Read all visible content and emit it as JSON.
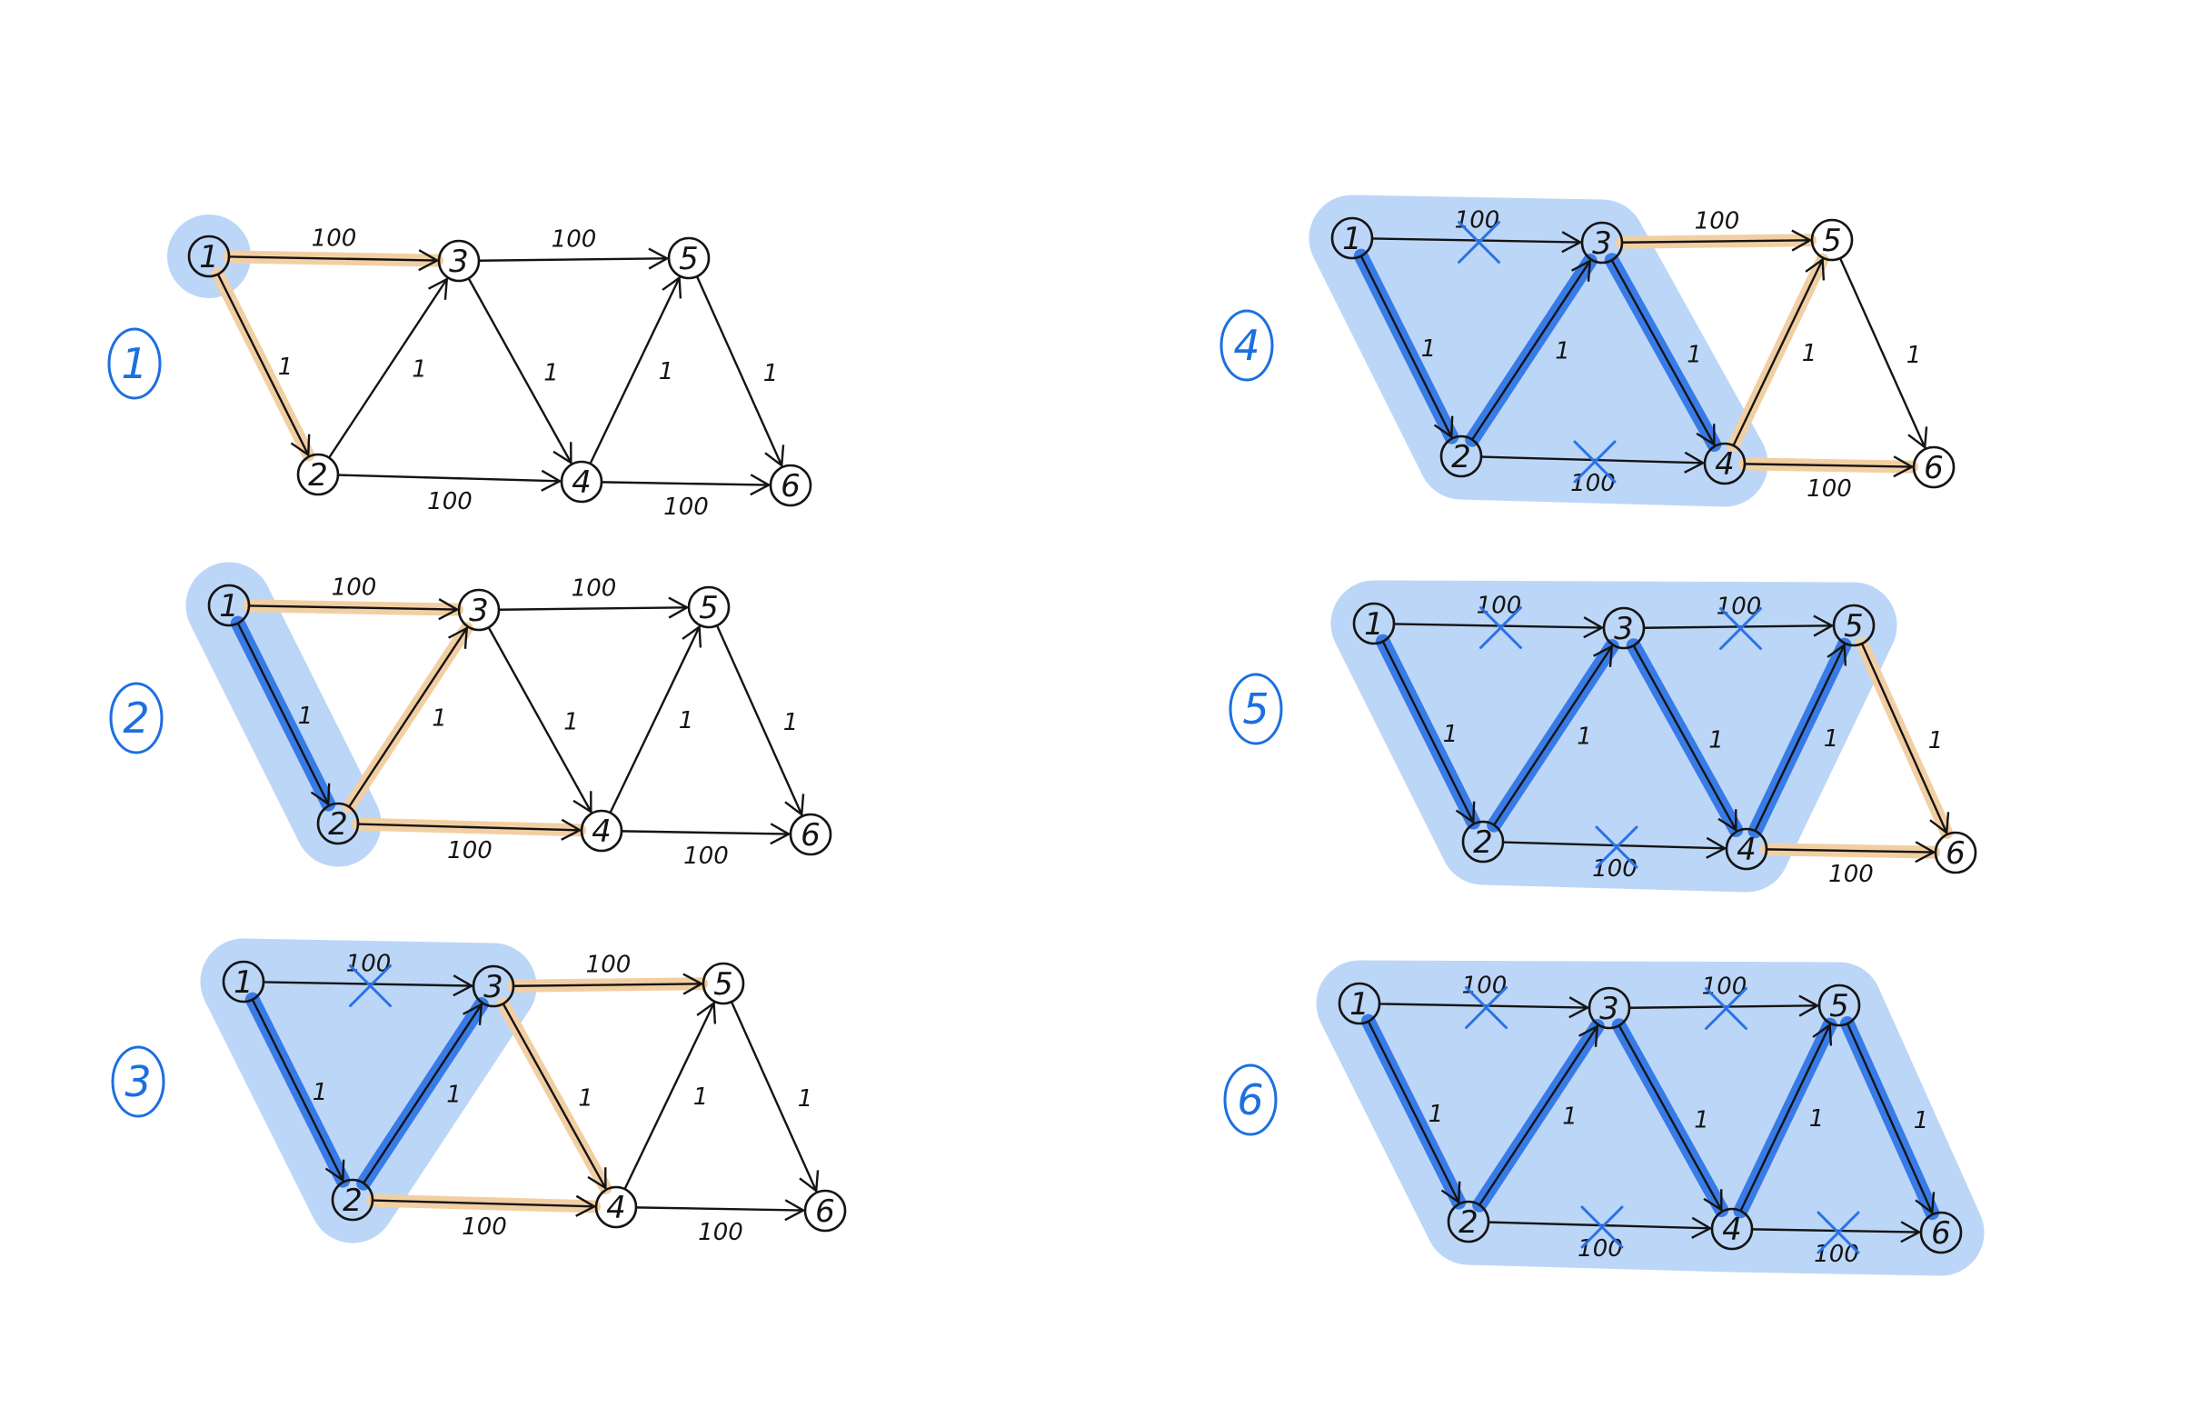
{
  "colors": {
    "region": "#bcd6f7",
    "tree_edge": "#2a72e6",
    "frontier": "#f2cfa3",
    "edge": "#141414",
    "cross": "#2a72e6",
    "step": "#1c6fe0"
  },
  "nodes": [
    {
      "id": "1",
      "label": "1"
    },
    {
      "id": "2",
      "label": "2"
    },
    {
      "id": "3",
      "label": "3"
    },
    {
      "id": "4",
      "label": "4"
    },
    {
      "id": "5",
      "label": "5"
    },
    {
      "id": "6",
      "label": "6"
    }
  ],
  "edges": [
    {
      "id": "e13",
      "from": "1",
      "to": "3",
      "weight": "100"
    },
    {
      "id": "e12",
      "from": "1",
      "to": "2",
      "weight": "1"
    },
    {
      "id": "e23",
      "from": "2",
      "to": "3",
      "weight": "1"
    },
    {
      "id": "e34",
      "from": "3",
      "to": "4",
      "weight": "1"
    },
    {
      "id": "e24",
      "from": "2",
      "to": "4",
      "weight": "100"
    },
    {
      "id": "e35",
      "from": "3",
      "to": "5",
      "weight": "100"
    },
    {
      "id": "e45",
      "from": "4",
      "to": "5",
      "weight": "1"
    },
    {
      "id": "e56",
      "from": "5",
      "to": "6",
      "weight": "1"
    },
    {
      "id": "e46",
      "from": "4",
      "to": "6",
      "weight": "100"
    }
  ],
  "panels": [
    {
      "step": "1",
      "tree": [],
      "frontier": [
        "e13",
        "e12"
      ],
      "crossed": [],
      "region": [
        "1"
      ]
    },
    {
      "step": "2",
      "tree": [
        "e12"
      ],
      "frontier": [
        "e13",
        "e23",
        "e24"
      ],
      "crossed": [],
      "region": [
        "1",
        "2"
      ]
    },
    {
      "step": "3",
      "tree": [
        "e12",
        "e23"
      ],
      "frontier": [
        "e35",
        "e34",
        "e24"
      ],
      "crossed": [
        "e13"
      ],
      "region": [
        "1",
        "2",
        "3"
      ]
    },
    {
      "step": "4",
      "tree": [
        "e12",
        "e23",
        "e34"
      ],
      "frontier": [
        "e35",
        "e45",
        "e46"
      ],
      "crossed": [
        "e13",
        "e24"
      ],
      "region": [
        "1",
        "2",
        "3",
        "4"
      ]
    },
    {
      "step": "5",
      "tree": [
        "e12",
        "e23",
        "e34",
        "e45"
      ],
      "frontier": [
        "e56",
        "e46"
      ],
      "crossed": [
        "e13",
        "e24",
        "e35"
      ],
      "region": [
        "1",
        "2",
        "3",
        "4",
        "5"
      ]
    },
    {
      "step": "6",
      "tree": [
        "e12",
        "e23",
        "e34",
        "e45",
        "e56"
      ],
      "frontier": [],
      "crossed": [
        "e13",
        "e24",
        "e35",
        "e46"
      ],
      "region": [
        "1",
        "2",
        "3",
        "4",
        "5",
        "6"
      ]
    }
  ]
}
